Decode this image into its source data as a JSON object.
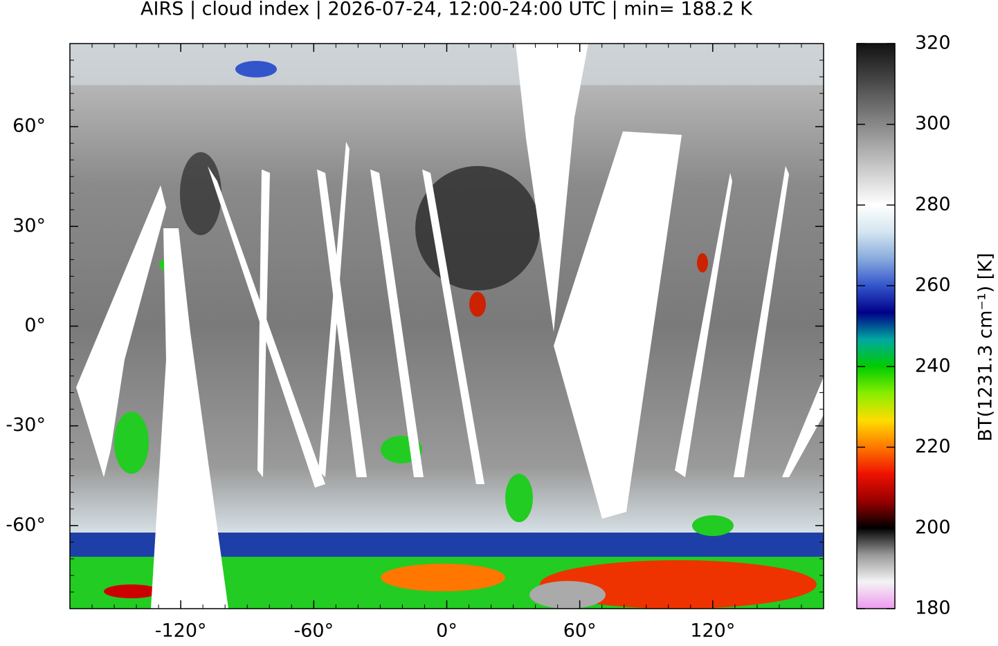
{
  "chart_data": {
    "type": "map",
    "title": "AIRS | cloud index | 2026-07-24, 12:00-24:00 UTC | min= 188.2 K",
    "xlim": [
      -170,
      170
    ],
    "ylim": [
      -85,
      85
    ],
    "xticks": [
      {
        "value": -120,
        "label": "-120°"
      },
      {
        "value": -60,
        "label": "-60°"
      },
      {
        "value": 0,
        "label": "0°"
      },
      {
        "value": 60,
        "label": "60°"
      },
      {
        "value": 120,
        "label": "120°"
      }
    ],
    "yticks": [
      {
        "value": -60,
        "label": "-60°"
      },
      {
        "value": -30,
        "label": "-30°"
      },
      {
        "value": 0,
        "label": "0°"
      },
      {
        "value": 30,
        "label": "30°"
      },
      {
        "value": 60,
        "label": "60°"
      }
    ],
    "colorbar": {
      "label": "BT(1231.3 cm⁻¹) [K]",
      "zlim": [
        180,
        320
      ],
      "ticks": [
        180,
        200,
        220,
        240,
        260,
        280,
        300,
        320
      ],
      "colormap": [
        "#ee99ee",
        "#f4f4f4",
        "#999999",
        "#000000",
        "#990000",
        "#ee1100",
        "#ff7700",
        "#ffdd00",
        "#88ee00",
        "#00cc00",
        "#00a8a0",
        "#000088",
        "#3355cc",
        "#88aadd",
        "#d4e6f0",
        "#ffffff",
        "#d8d8d8",
        "#b0b0b0",
        "#888888",
        "#606060",
        "#383838",
        "#111111"
      ]
    }
  }
}
